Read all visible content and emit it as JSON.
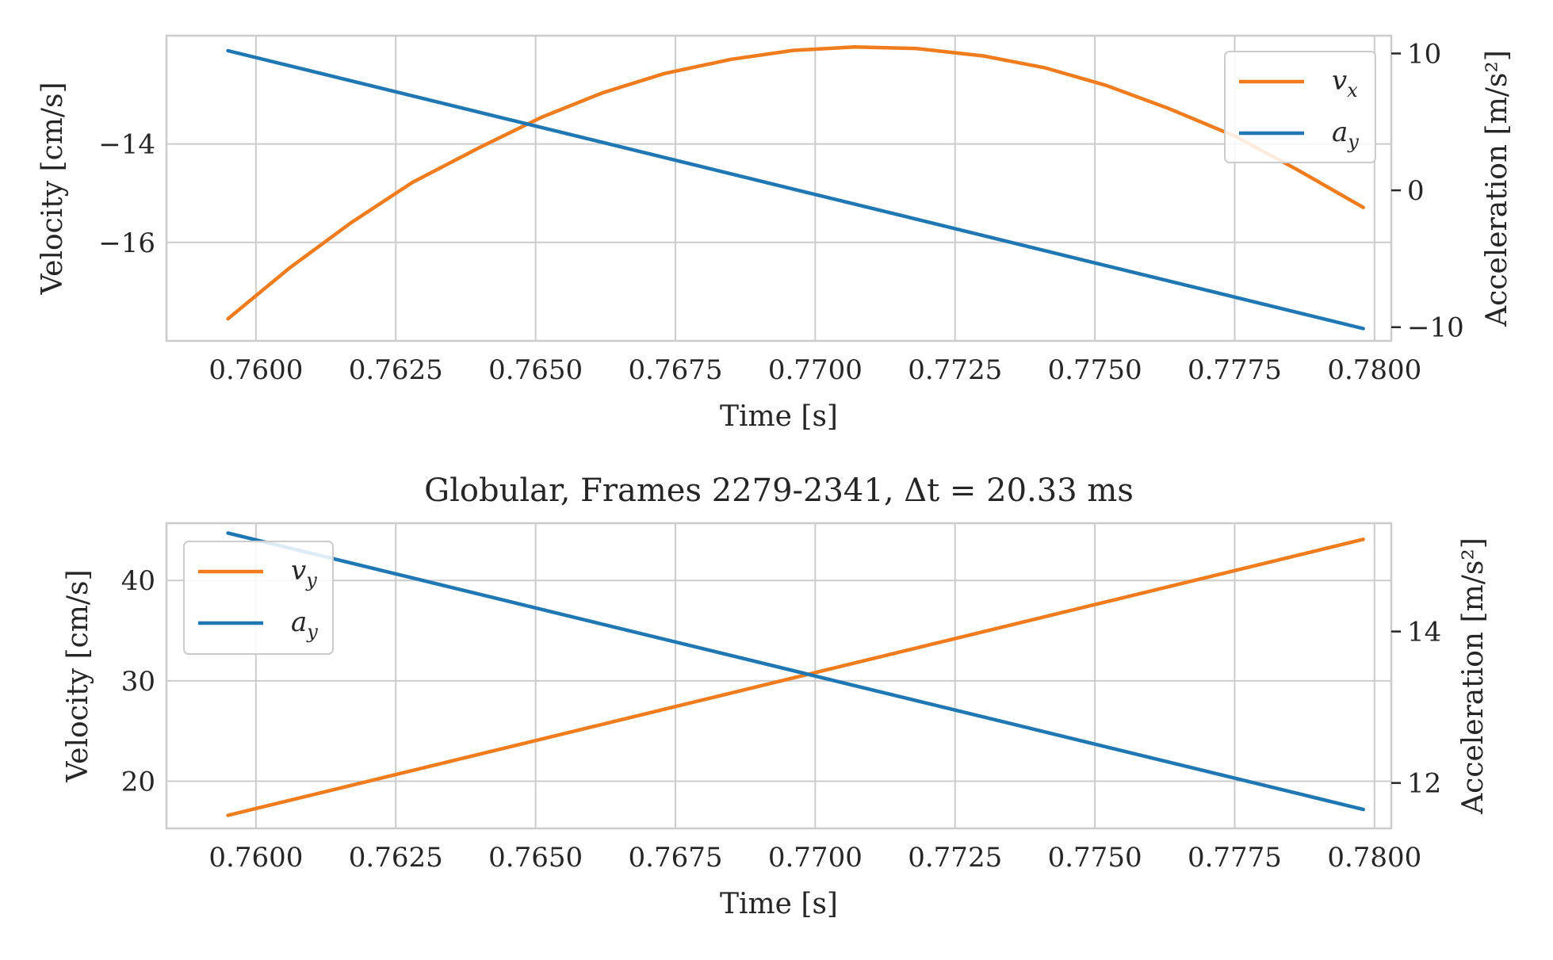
{
  "chart_data": [
    {
      "type": "line",
      "title": "",
      "xlabel": "Time [s]",
      "ylabel": "Velocity [cm/s]",
      "ylabel_right": "Acceleration [m/s²]",
      "xlim": [
        0.7584,
        0.7803
      ],
      "ylim": [
        -18.0,
        -11.8
      ],
      "ylim_right": [
        -11.0,
        11.3
      ],
      "xticks": [
        0.76,
        0.7625,
        0.765,
        0.7675,
        0.77,
        0.7725,
        0.775,
        0.7775,
        0.78
      ],
      "xtick_labels": [
        "0.7600",
        "0.7625",
        "0.7650",
        "0.7675",
        "0.7700",
        "0.7725",
        "0.7750",
        "0.7775",
        "0.7800"
      ],
      "yticks": [
        -14,
        -16
      ],
      "ytick_labels": [
        "−14",
        "−16"
      ],
      "yticks_right": [
        10,
        0,
        -10
      ],
      "ytick_labels_right": [
        "10",
        "0",
        "−10"
      ],
      "grid": true,
      "legend_position": "top-right",
      "series": [
        {
          "name": "v_x",
          "axis": "left",
          "color": "#f07c1e",
          "x": [
            0.7595,
            0.7606,
            0.7617,
            0.7628,
            0.764,
            0.7651,
            0.7662,
            0.7673,
            0.7685,
            0.7696,
            0.7707,
            0.7718,
            0.773,
            0.7741,
            0.7752,
            0.7763,
            0.7775,
            0.7786,
            0.7798
          ],
          "values": [
            -17.55,
            -16.52,
            -15.6,
            -14.78,
            -14.07,
            -13.46,
            -12.96,
            -12.57,
            -12.28,
            -12.1,
            -12.03,
            -12.06,
            -12.21,
            -12.45,
            -12.81,
            -13.27,
            -13.84,
            -14.51,
            -15.29
          ]
        },
        {
          "name": "a_y",
          "axis": "right",
          "color": "#1f77b4",
          "x": [
            0.7595,
            0.7798
          ],
          "values": [
            10.2,
            -10.1
          ]
        }
      ]
    },
    {
      "type": "line",
      "title": "Globular, Frames 2279-2341, Δt = 20.33 ms",
      "xlabel": "Time [s]",
      "ylabel": "Velocity [cm/s]",
      "ylabel_right": "Acceleration [m/s²]",
      "xlim": [
        0.7584,
        0.7803
      ],
      "ylim": [
        15.3,
        45.7
      ],
      "ylim_right": [
        11.4,
        15.43
      ],
      "xticks": [
        0.76,
        0.7625,
        0.765,
        0.7675,
        0.77,
        0.7725,
        0.775,
        0.7775,
        0.78
      ],
      "xtick_labels": [
        "0.7600",
        "0.7625",
        "0.7650",
        "0.7675",
        "0.7700",
        "0.7725",
        "0.7750",
        "0.7775",
        "0.7800"
      ],
      "yticks": [
        40,
        30,
        20
      ],
      "ytick_labels": [
        "40",
        "30",
        "20"
      ],
      "yticks_right": [
        14,
        12
      ],
      "ytick_labels_right": [
        "14",
        "12"
      ],
      "grid": true,
      "legend_position": "top-left",
      "series": [
        {
          "name": "v_y",
          "axis": "left",
          "color": "#f07c1e",
          "x": [
            0.7595,
            0.7798
          ],
          "values": [
            16.6,
            44.1
          ]
        },
        {
          "name": "a_y",
          "axis": "right",
          "color": "#1f77b4",
          "x": [
            0.7595,
            0.7798
          ],
          "values": [
            15.3,
            11.65
          ]
        }
      ]
    }
  ]
}
